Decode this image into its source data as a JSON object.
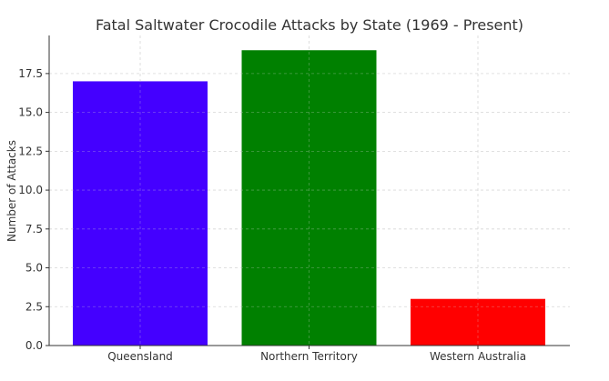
{
  "chart_data": {
    "type": "bar",
    "title": "Fatal Saltwater Crocodile Attacks by State (1969 - Present)",
    "xlabel": "",
    "ylabel": "Number of Attacks",
    "categories": [
      "Queensland",
      "Northern Territory",
      "Western Australia"
    ],
    "values": [
      17,
      19,
      3
    ],
    "colors": [
      "#4400ff",
      "#008000",
      "#ff0000"
    ],
    "ylim": [
      0,
      19.95
    ],
    "yticks": [
      "0.0",
      "2.5",
      "5.0",
      "7.5",
      "10.0",
      "12.5",
      "15.0",
      "17.5"
    ],
    "grid": true,
    "legend": "none"
  }
}
